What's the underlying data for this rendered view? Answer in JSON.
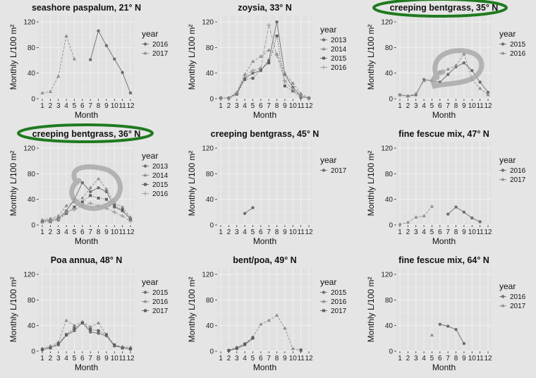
{
  "chart_data": [
    {
      "type": "line",
      "title": "seashore paspalum, 21° N",
      "xlabel": "Month",
      "ylabel": "Monthly L/100 m²",
      "categories": [
        "1",
        "2",
        "3",
        "4",
        "5",
        "6",
        "7",
        "8",
        "9",
        "10",
        "11",
        "12"
      ],
      "yticks": [
        "0",
        "40",
        "80",
        "120"
      ],
      "ylim": [
        0,
        130
      ],
      "legend_title": "year",
      "series": [
        {
          "name": "2016",
          "marker": "circle",
          "values": [
            null,
            null,
            null,
            null,
            null,
            null,
            61,
            106,
            83,
            62,
            41,
            9
          ]
        },
        {
          "name": "2017",
          "marker": "triangle",
          "values": [
            9,
            11,
            35,
            98,
            62,
            null,
            null,
            null,
            null,
            null,
            null,
            null
          ]
        }
      ]
    },
    {
      "type": "line",
      "title": "zoysia, 33° N",
      "xlabel": "Month",
      "ylabel": "Monthly L/100 m²",
      "categories": [
        "1",
        "2",
        "3",
        "4",
        "5",
        "6",
        "7",
        "8",
        "9",
        "10",
        "11",
        "12"
      ],
      "yticks": [
        "0",
        "40",
        "80",
        "120"
      ],
      "ylim": [
        0,
        130
      ],
      "legend_title": "year",
      "series": [
        {
          "name": "2013",
          "marker": "circle",
          "values": [
            1,
            1,
            8,
            32,
            40,
            44,
            60,
            120,
            38,
            18,
            4,
            1
          ]
        },
        {
          "name": "2014",
          "marker": "triangle",
          "values": [
            1,
            1,
            10,
            38,
            58,
            66,
            76,
            70,
            40,
            24,
            8,
            1
          ]
        },
        {
          "name": "2015",
          "marker": "square",
          "values": [
            1,
            1,
            7,
            30,
            32,
            46,
            56,
            98,
            20,
            12,
            2,
            1
          ]
        },
        {
          "name": "2016",
          "marker": "plus",
          "values": [
            1,
            1,
            9,
            36,
            44,
            48,
            115,
            68,
            28,
            14,
            4,
            1
          ]
        }
      ]
    },
    {
      "type": "line",
      "title": "creeping bentgrass, 35° N",
      "xlabel": "Month",
      "ylabel": "Monthly L/100 m²",
      "categories": [
        "1",
        "2",
        "3",
        "4",
        "5",
        "6",
        "7",
        "8",
        "9",
        "10",
        "11",
        "12"
      ],
      "yticks": [
        "0",
        "40",
        "80",
        "120"
      ],
      "ylim": [
        0,
        130
      ],
      "legend_title": "year",
      "series": [
        {
          "name": "2015",
          "marker": "circle",
          "values": [
            6,
            4,
            6,
            30,
            28,
            26,
            38,
            50,
            56,
            44,
            26,
            10
          ]
        },
        {
          "name": "2016",
          "marker": "triangle",
          "values": [
            6,
            4,
            8,
            28,
            30,
            42,
            46,
            52,
            70,
            30,
            16,
            6
          ]
        }
      ]
    },
    {
      "type": "line",
      "title": "creeping bentgrass, 36° N",
      "xlabel": "Month",
      "ylabel": "Monthly L/100 m²",
      "categories": [
        "1",
        "2",
        "3",
        "4",
        "5",
        "6",
        "7",
        "8",
        "9",
        "10",
        "11",
        "12"
      ],
      "yticks": [
        "0",
        "40",
        "80",
        "120"
      ],
      "ylim": [
        0,
        130
      ],
      "legend_title": "year",
      "series": [
        {
          "name": "2013",
          "marker": "circle",
          "values": [
            6,
            8,
            10,
            22,
            40,
            66,
            52,
            58,
            52,
            28,
            22,
            10
          ]
        },
        {
          "name": "2014",
          "marker": "triangle",
          "values": [
            8,
            10,
            14,
            30,
            36,
            42,
            58,
            72,
            56,
            34,
            28,
            12
          ]
        },
        {
          "name": "2015",
          "marker": "square",
          "values": [
            5,
            5,
            8,
            18,
            28,
            36,
            46,
            42,
            40,
            30,
            24,
            8
          ]
        },
        {
          "name": "2016",
          "marker": "plus",
          "values": [
            4,
            6,
            8,
            20,
            24,
            30,
            34,
            30,
            26,
            20,
            14,
            6
          ]
        }
      ]
    },
    {
      "type": "line",
      "title": "creeping bentgrass, 45° N",
      "xlabel": "Month",
      "ylabel": "Monthly L/100 m²",
      "categories": [
        "1",
        "2",
        "3",
        "4",
        "5",
        "6",
        "7",
        "8",
        "9",
        "10",
        "11",
        "12"
      ],
      "yticks": [
        "0",
        "40",
        "80",
        "120"
      ],
      "ylim": [
        0,
        130
      ],
      "legend_title": "year",
      "series": [
        {
          "name": "2017",
          "marker": "circle",
          "values": [
            null,
            null,
            null,
            18,
            27,
            null,
            null,
            null,
            null,
            null,
            null,
            null
          ]
        }
      ]
    },
    {
      "type": "line",
      "title": "fine fescue mix, 47° N",
      "xlabel": "Month",
      "ylabel": "Monthly L/100 m²",
      "categories": [
        "1",
        "2",
        "3",
        "4",
        "5",
        "6",
        "7",
        "8",
        "9",
        "10",
        "11",
        "12"
      ],
      "yticks": [
        "0",
        "40",
        "80",
        "120"
      ],
      "ylim": [
        0,
        130
      ],
      "legend_title": "year",
      "series": [
        {
          "name": "2016",
          "marker": "circle",
          "values": [
            null,
            null,
            null,
            null,
            null,
            null,
            17,
            28,
            20,
            11,
            5,
            null
          ]
        },
        {
          "name": "2017",
          "marker": "triangle",
          "values": [
            1,
            4,
            12,
            14,
            29,
            null,
            null,
            null,
            null,
            null,
            null,
            null
          ]
        }
      ]
    },
    {
      "type": "line",
      "title": "Poa annua, 48° N",
      "xlabel": "Month",
      "ylabel": "Monthly L/100 m²",
      "categories": [
        "1",
        "2",
        "3",
        "4",
        "5",
        "6",
        "7",
        "8",
        "9",
        "10",
        "11",
        "12"
      ],
      "yticks": [
        "0",
        "40",
        "80",
        "120"
      ],
      "ylim": [
        0,
        130
      ],
      "legend_title": "year",
      "series": [
        {
          "name": "2015",
          "marker": "circle",
          "values": [
            2,
            6,
            10,
            25,
            32,
            45,
            30,
            28,
            24,
            8,
            6,
            3
          ]
        },
        {
          "name": "2016",
          "marker": "triangle",
          "values": [
            4,
            8,
            14,
            48,
            40,
            46,
            38,
            44,
            25,
            9,
            7,
            6
          ]
        },
        {
          "name": "2017",
          "marker": "square",
          "values": [
            3,
            5,
            12,
            26,
            36,
            44,
            34,
            32,
            26,
            10,
            5,
            4
          ]
        }
      ]
    },
    {
      "type": "line",
      "title": "bent/poa, 49° N",
      "xlabel": "Month",
      "ylabel": "Monthly L/100 m²",
      "categories": [
        "1",
        "2",
        "3",
        "4",
        "5",
        "6",
        "7",
        "8",
        "9",
        "10",
        "11",
        "12"
      ],
      "yticks": [
        "0",
        "40",
        "80",
        "120"
      ],
      "ylim": [
        0,
        130
      ],
      "legend_title": "year",
      "series": [
        {
          "name": "2015",
          "marker": "circle",
          "values": [
            null,
            1,
            4,
            10,
            20,
            null,
            null,
            null,
            null,
            null,
            null,
            null
          ]
        },
        {
          "name": "2016",
          "marker": "triangle",
          "values": [
            null,
            2,
            6,
            12,
            22,
            42,
            48,
            56,
            36,
            4,
            1,
            null
          ]
        },
        {
          "name": "2017",
          "marker": "square",
          "values": [
            null,
            1,
            5,
            11,
            21,
            null,
            null,
            null,
            null,
            null,
            2,
            null
          ]
        }
      ]
    },
    {
      "type": "line",
      "title": "fine fescue mix, 64° N",
      "xlabel": "Month",
      "ylabel": "Monthly L/100 m²",
      "categories": [
        "1",
        "2",
        "3",
        "4",
        "5",
        "6",
        "7",
        "8",
        "9",
        "10",
        "11",
        "12"
      ],
      "yticks": [
        "0",
        "40",
        "80",
        "120"
      ],
      "ylim": [
        0,
        130
      ],
      "legend_title": "year",
      "series": [
        {
          "name": "2016",
          "marker": "circle",
          "values": [
            null,
            null,
            null,
            null,
            null,
            42,
            39,
            34,
            12,
            null,
            null,
            null
          ]
        },
        {
          "name": "2017",
          "marker": "triangle",
          "values": [
            null,
            null,
            null,
            null,
            25,
            null,
            null,
            null,
            null,
            null,
            null,
            null
          ]
        }
      ]
    }
  ],
  "annotations": {
    "green_highlight_color": "#1f7a1f",
    "gray_scribble_color": "#a9a9a9"
  }
}
